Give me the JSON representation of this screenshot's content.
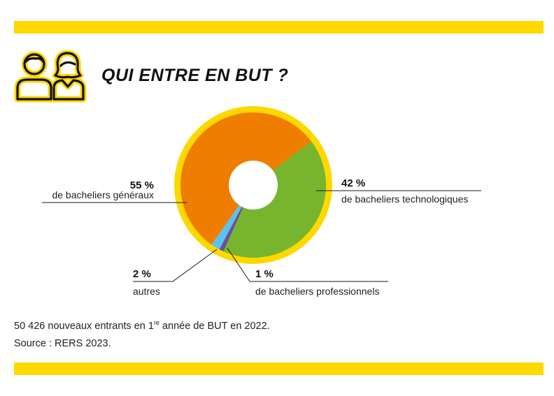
{
  "title": "QUI ENTRE EN BUT ?",
  "icon": "people-icon",
  "colors": {
    "band": "#ffd800",
    "ring": "#ffd800",
    "generaux": "#ef7d00",
    "technologiques": "#78b52e",
    "professionnels": "#6a4fa0",
    "autres": "#5bc2ee"
  },
  "chart_data": {
    "type": "pie",
    "title": "QUI ENTRE EN BUT ?",
    "slices": [
      {
        "key": "generaux",
        "value": 55,
        "pct_label": "55 %",
        "label": "de bacheliers généraux"
      },
      {
        "key": "technologiques",
        "value": 42,
        "pct_label": "42 %",
        "label": "de bacheliers technologiques"
      },
      {
        "key": "professionnels",
        "value": 1,
        "pct_label": "1 %",
        "label": "de bacheliers professionnels"
      },
      {
        "key": "autres",
        "value": 2,
        "pct_label": "2 %",
        "label": "autres"
      }
    ]
  },
  "footnote": {
    "line1_pre": "50 426 nouveaux entrants en 1",
    "line1_sup": "re",
    "line1_post": " année de BUT en 2022.",
    "line2": "Source : RERS 2023."
  }
}
